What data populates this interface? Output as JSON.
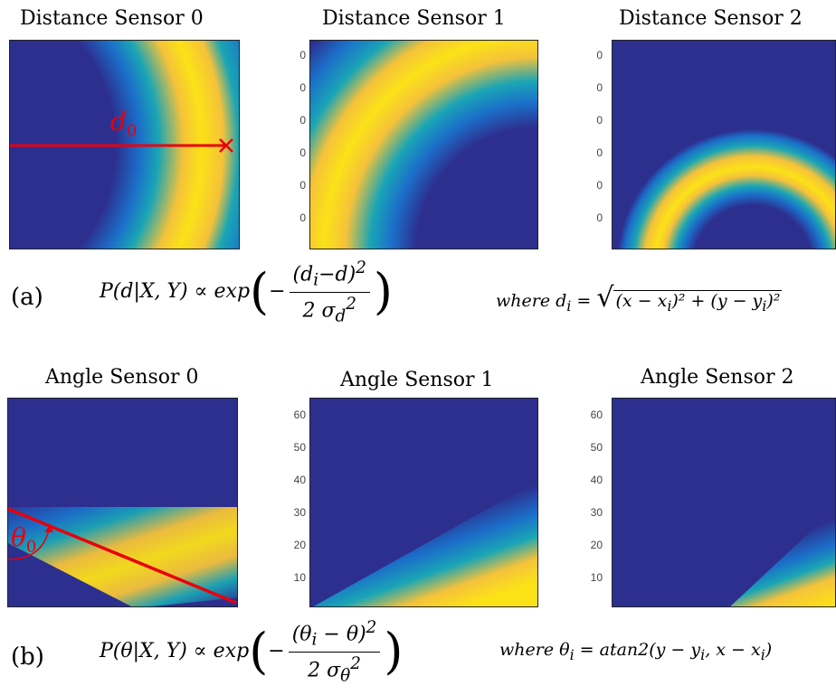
{
  "row_a": {
    "titles": [
      "Distance Sensor 0",
      "Distance Sensor 1",
      "Distance Sensor 2"
    ],
    "ticks_1": [
      "0",
      "0",
      "0",
      "0",
      "0",
      "0"
    ],
    "ticks_2": [
      "0",
      "0",
      "0",
      "0",
      "0",
      "0"
    ],
    "annotation": "d",
    "annotation_sub": "0",
    "label": "(a)",
    "eq": {
      "lhs": "P(d|X, Y) ∝ exp",
      "num": "(d",
      "num_sub": "i",
      "num_rest": "−d)",
      "num_sup": "2",
      "den": "2 σ",
      "den_sub": "d",
      "den_sup": "2"
    },
    "where": {
      "prefix": "where d",
      "prefix_sub": "i",
      "eq": " = ",
      "radicand": "(x − x",
      "r_sub1": "i",
      "r_mid": ")² + (y − y",
      "r_sub2": "i",
      "r_end": ")²"
    }
  },
  "row_b": {
    "titles": [
      "Angle Sensor 0",
      "Angle Sensor 1",
      "Angle Sensor 2"
    ],
    "ticks_1": [
      "60",
      "50",
      "40",
      "30",
      "20",
      "10"
    ],
    "ticks_2": [
      "60",
      "50",
      "40",
      "30",
      "20",
      "10"
    ],
    "annotation": "θ",
    "annotation_sub": "0",
    "label": "(b)",
    "eq": {
      "lhs": "P(θ|X, Y) ∝ exp",
      "num": "(θ",
      "num_sub": "i",
      "num_rest": " − θ)",
      "num_sup": "2",
      "den": "2 σ",
      "den_sub": "θ",
      "den_sup": "2"
    },
    "where": {
      "prefix": "where θ",
      "prefix_sub": "i",
      "rest": " = atan2(y − y",
      "r_sub1": "i",
      "r_mid": ", x − x",
      "r_sub2": "i",
      "r_end": ")"
    }
  },
  "colors": {
    "background": "#2d2f8f",
    "teal": "#1aa5b5",
    "yellow": "#fbe217",
    "marker": "#e8000b"
  }
}
